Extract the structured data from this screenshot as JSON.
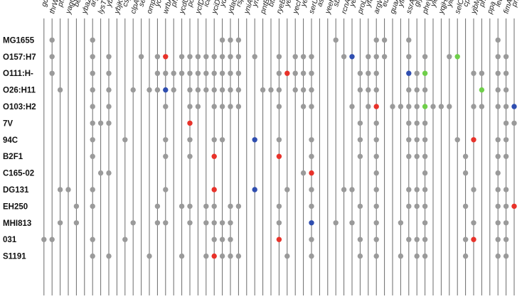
{
  "genes": [
    "gcd",
    "thrW",
    "ptwF",
    "yagQ",
    "betA",
    "ybaZ",
    "argU",
    "lysT",
    "ybhC",
    "ybjK",
    "cspD",
    "clpA",
    "serC",
    "ompX",
    "ycaA",
    "wrbA",
    "phoH",
    "ycdU",
    "potC",
    "ycfD",
    "icdA",
    "yciD",
    "ydaK",
    "ydaO",
    "rspB",
    "yniA",
    "ynfH",
    "pntB",
    "btuC",
    "ryeB",
    "yecE",
    "yecN",
    "yecA",
    "serU",
    "asnT",
    "yeeH",
    "sbcB",
    "rcnA",
    "yehV",
    "proL",
    "yfaT",
    "argW",
    "eutB",
    "guaA",
    "yfhL",
    "ssrA",
    "glyU",
    "pheV",
    "yleX",
    "yqjH",
    "yicC",
    "selC",
    "cpxP",
    "yjbM",
    "pheU",
    "ppa",
    "leuX",
    "fimA",
    "prfC"
  ],
  "strains": [
    "MG1655",
    "O157:H7",
    "O111:H-",
    "O26:H11",
    "O103:H2",
    "7V",
    "94C",
    "B2F1",
    "C165-02",
    "DG131",
    "EH250",
    "MHI813",
    "031",
    "S1191"
  ],
  "colors": {
    "gray": "#9a9a9a",
    "red": "#e8322a",
    "blue": "#2f4eb0",
    "green": "#6fcf4a"
  },
  "matrix": [
    [
      0,
      1,
      0,
      0,
      0,
      0,
      1,
      0,
      0,
      0,
      0,
      0,
      0,
      0,
      0,
      0,
      0,
      0,
      0,
      0,
      0,
      0,
      1,
      1,
      1,
      0,
      0,
      0,
      0,
      0,
      0,
      0,
      0,
      0,
      0,
      0,
      1,
      0,
      0,
      0,
      0,
      1,
      1,
      0,
      0,
      1,
      0,
      0,
      0,
      0,
      0,
      0,
      0,
      0,
      0,
      0,
      1,
      0,
      0
    ],
    [
      0,
      1,
      0,
      0,
      0,
      0,
      1,
      0,
      1,
      0,
      0,
      0,
      1,
      0,
      1,
      2,
      0,
      1,
      1,
      1,
      1,
      1,
      1,
      1,
      1,
      0,
      1,
      0,
      0,
      1,
      0,
      1,
      1,
      1,
      0,
      0,
      0,
      1,
      3,
      0,
      1,
      1,
      1,
      0,
      0,
      1,
      0,
      1,
      0,
      0,
      1,
      4,
      0,
      0,
      0,
      0,
      1,
      1,
      0
    ],
    [
      0,
      1,
      0,
      0,
      0,
      0,
      1,
      0,
      1,
      0,
      0,
      0,
      0,
      0,
      1,
      1,
      1,
      1,
      1,
      1,
      1,
      1,
      1,
      1,
      1,
      0,
      0,
      0,
      0,
      1,
      2,
      1,
      1,
      1,
      0,
      0,
      0,
      0,
      0,
      1,
      1,
      1,
      0,
      0,
      0,
      3,
      1,
      4,
      0,
      0,
      0,
      0,
      0,
      1,
      1,
      0,
      1,
      1,
      0
    ],
    [
      0,
      0,
      1,
      0,
      0,
      0,
      1,
      0,
      1,
      0,
      0,
      1,
      0,
      1,
      1,
      3,
      1,
      0,
      1,
      1,
      1,
      1,
      1,
      1,
      1,
      0,
      0,
      1,
      1,
      1,
      0,
      1,
      1,
      1,
      0,
      0,
      0,
      0,
      0,
      1,
      1,
      1,
      0,
      0,
      0,
      1,
      1,
      1,
      0,
      0,
      0,
      0,
      0,
      0,
      4,
      0,
      1,
      1,
      0
    ],
    [
      0,
      0,
      0,
      0,
      0,
      0,
      1,
      0,
      1,
      0,
      0,
      0,
      0,
      0,
      0,
      1,
      0,
      0,
      1,
      1,
      0,
      1,
      1,
      1,
      1,
      0,
      0,
      0,
      0,
      1,
      0,
      0,
      1,
      1,
      0,
      0,
      0,
      0,
      1,
      0,
      1,
      2,
      0,
      1,
      1,
      1,
      1,
      4,
      1,
      1,
      1,
      0,
      0,
      1,
      1,
      0,
      1,
      1,
      3
    ],
    [
      0,
      0,
      0,
      0,
      0,
      0,
      1,
      1,
      1,
      0,
      0,
      0,
      0,
      0,
      0,
      0,
      0,
      0,
      2,
      0,
      0,
      0,
      0,
      0,
      0,
      0,
      0,
      0,
      0,
      0,
      0,
      0,
      0,
      0,
      0,
      0,
      0,
      0,
      0,
      1,
      0,
      1,
      0,
      0,
      0,
      1,
      1,
      1,
      0,
      0,
      0,
      0,
      0,
      0,
      0,
      0,
      0,
      1,
      1
    ],
    [
      0,
      0,
      0,
      0,
      0,
      0,
      1,
      0,
      0,
      0,
      1,
      0,
      0,
      0,
      0,
      1,
      0,
      0,
      1,
      0,
      0,
      1,
      1,
      0,
      0,
      0,
      3,
      0,
      0,
      1,
      0,
      0,
      0,
      1,
      0,
      0,
      0,
      0,
      0,
      1,
      0,
      1,
      0,
      0,
      0,
      1,
      1,
      1,
      0,
      0,
      0,
      1,
      0,
      2,
      0,
      0,
      1,
      1,
      0
    ],
    [
      0,
      0,
      0,
      0,
      0,
      0,
      1,
      0,
      0,
      0,
      0,
      0,
      0,
      0,
      0,
      1,
      0,
      0,
      1,
      0,
      0,
      2,
      0,
      0,
      0,
      0,
      0,
      0,
      0,
      2,
      0,
      0,
      0,
      1,
      0,
      0,
      0,
      0,
      0,
      1,
      0,
      1,
      0,
      0,
      0,
      1,
      1,
      1,
      0,
      0,
      0,
      0,
      1,
      0,
      0,
      0,
      1,
      1,
      0
    ],
    [
      0,
      0,
      0,
      0,
      0,
      0,
      0,
      1,
      1,
      0,
      0,
      0,
      0,
      0,
      0,
      0,
      0,
      0,
      0,
      0,
      0,
      0,
      0,
      0,
      0,
      0,
      0,
      0,
      0,
      0,
      0,
      0,
      1,
      2,
      0,
      0,
      0,
      0,
      0,
      0,
      0,
      1,
      0,
      0,
      0,
      0,
      0,
      1,
      0,
      0,
      0,
      0,
      1,
      0,
      0,
      0,
      1,
      0,
      0
    ],
    [
      0,
      0,
      1,
      1,
      0,
      0,
      1,
      0,
      0,
      0,
      0,
      0,
      0,
      0,
      0,
      1,
      0,
      0,
      0,
      0,
      0,
      2,
      0,
      0,
      0,
      0,
      3,
      0,
      0,
      0,
      1,
      0,
      0,
      1,
      0,
      0,
      0,
      1,
      1,
      0,
      0,
      1,
      0,
      0,
      0,
      1,
      1,
      1,
      0,
      0,
      0,
      0,
      0,
      1,
      0,
      0,
      1,
      1,
      0
    ],
    [
      0,
      0,
      0,
      0,
      1,
      0,
      1,
      0,
      0,
      0,
      0,
      0,
      0,
      0,
      1,
      0,
      0,
      1,
      1,
      0,
      1,
      1,
      0,
      1,
      1,
      0,
      0,
      0,
      0,
      1,
      0,
      0,
      0,
      1,
      0,
      0,
      0,
      0,
      0,
      1,
      0,
      1,
      0,
      0,
      0,
      1,
      1,
      1,
      0,
      0,
      0,
      0,
      1,
      0,
      0,
      0,
      1,
      1,
      2
    ],
    [
      0,
      0,
      1,
      0,
      1,
      0,
      0,
      0,
      0,
      0,
      0,
      1,
      0,
      0,
      1,
      1,
      0,
      0,
      1,
      0,
      1,
      1,
      1,
      1,
      0,
      0,
      0,
      0,
      0,
      1,
      0,
      0,
      0,
      3,
      0,
      0,
      1,
      0,
      1,
      0,
      0,
      1,
      0,
      0,
      1,
      0,
      0,
      1,
      0,
      0,
      0,
      0,
      0,
      1,
      0,
      0,
      1,
      1,
      0
    ],
    [
      1,
      1,
      0,
      0,
      0,
      0,
      1,
      0,
      0,
      0,
      1,
      0,
      0,
      0,
      0,
      0,
      0,
      0,
      0,
      0,
      0,
      1,
      1,
      1,
      0,
      0,
      0,
      0,
      0,
      2,
      0,
      0,
      0,
      1,
      0,
      0,
      0,
      0,
      0,
      1,
      0,
      1,
      0,
      0,
      0,
      1,
      1,
      1,
      0,
      0,
      0,
      0,
      1,
      2,
      0,
      0,
      1,
      1,
      0
    ],
    [
      0,
      0,
      0,
      0,
      0,
      0,
      1,
      0,
      1,
      0,
      0,
      0,
      0,
      1,
      0,
      0,
      0,
      1,
      0,
      0,
      1,
      2,
      1,
      1,
      1,
      0,
      0,
      0,
      0,
      0,
      1,
      0,
      0,
      1,
      0,
      0,
      0,
      0,
      0,
      1,
      0,
      1,
      0,
      0,
      1,
      0,
      1,
      1,
      0,
      0,
      0,
      0,
      1,
      0,
      0,
      0,
      1,
      1,
      0
    ]
  ]
}
